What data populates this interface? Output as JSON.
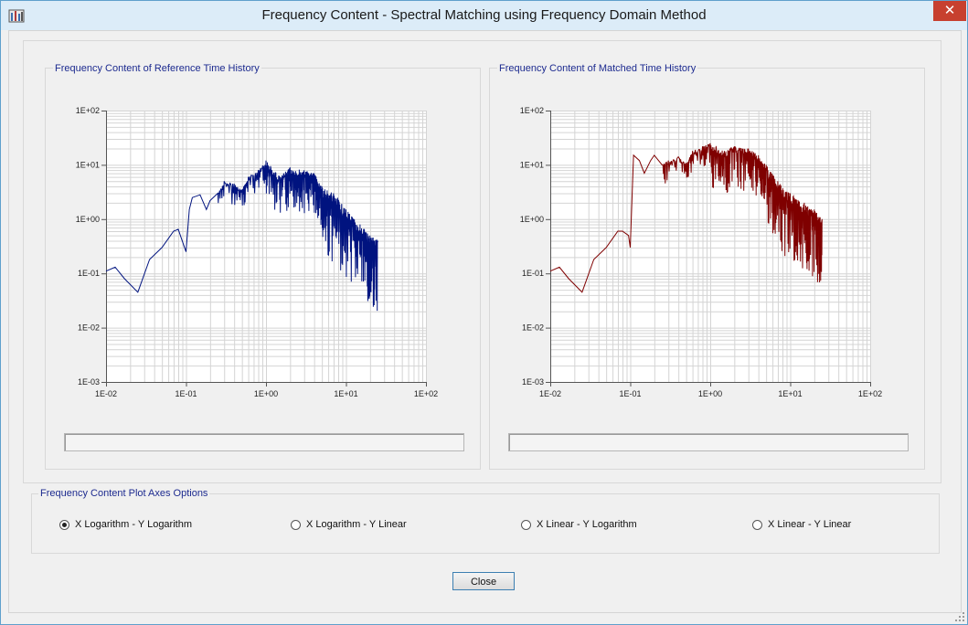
{
  "window": {
    "title": "Frequency Content - Spectral Matching using Frequency Domain Method",
    "close_glyph": "✕"
  },
  "colors": {
    "reference_series": "#00137f",
    "matched_series": "#7f0000",
    "title_text": "#1c2a8f"
  },
  "chart_data": [
    {
      "type": "line",
      "title": "Frequency Content of Reference Time History",
      "xscale": "log",
      "yscale": "log",
      "xlim": [
        0.01,
        100
      ],
      "ylim": [
        0.001,
        100
      ],
      "x_ticks": [
        "1E-02",
        "1E-01",
        "1E+00",
        "1E+01",
        "1E+02"
      ],
      "y_ticks": [
        "1E-03",
        "1E-02",
        "1E-01",
        "1E+00",
        "1E+01",
        "1E+02"
      ],
      "grid": true,
      "series": [
        {
          "color": "#00137f",
          "x": [
            0.01,
            0.013,
            0.017,
            0.025,
            0.035,
            0.05,
            0.07,
            0.08,
            0.1,
            0.11,
            0.12,
            0.15,
            0.18,
            0.2,
            0.25,
            0.3,
            0.4,
            0.5,
            0.6,
            0.8,
            1.0,
            1.5,
            2.0,
            3.0,
            4.0,
            5.0,
            7.0,
            10.0,
            15.0,
            20.0,
            25.0
          ],
          "y": [
            0.11,
            0.13,
            0.08,
            0.045,
            0.18,
            0.3,
            0.6,
            0.65,
            0.25,
            1.5,
            2.5,
            2.8,
            1.5,
            2.2,
            3.0,
            5.0,
            4.5,
            3.5,
            6.0,
            8.0,
            12.0,
            6.0,
            9.0,
            8.0,
            7.0,
            4.0,
            3.0,
            1.5,
            0.8,
            0.5,
            0.4
          ]
        }
      ]
    },
    {
      "type": "line",
      "title": "Frequency Content of Matched Time History",
      "xscale": "log",
      "yscale": "log",
      "xlim": [
        0.01,
        100
      ],
      "ylim": [
        0.001,
        100
      ],
      "x_ticks": [
        "1E-02",
        "1E-01",
        "1E+00",
        "1E+01",
        "1E+02"
      ],
      "y_ticks": [
        "1E-03",
        "1E-02",
        "1E-01",
        "1E+00",
        "1E+01",
        "1E+02"
      ],
      "grid": true,
      "series": [
        {
          "color": "#7f0000",
          "x": [
            0.01,
            0.013,
            0.017,
            0.025,
            0.035,
            0.05,
            0.07,
            0.08,
            0.095,
            0.1,
            0.11,
            0.13,
            0.15,
            0.18,
            0.2,
            0.25,
            0.3,
            0.4,
            0.5,
            0.6,
            0.8,
            1.0,
            1.5,
            2.0,
            3.0,
            4.0,
            5.0,
            7.0,
            10.0,
            15.0,
            20.0,
            25.0
          ],
          "y": [
            0.11,
            0.13,
            0.08,
            0.045,
            0.18,
            0.3,
            0.6,
            0.6,
            0.5,
            0.3,
            15.0,
            12.0,
            7.0,
            12.0,
            15.0,
            10.0,
            12.0,
            14.0,
            11.0,
            18.0,
            22.0,
            25.0,
            18.0,
            22.0,
            20.0,
            15.0,
            10.0,
            5.0,
            3.0,
            2.0,
            1.5,
            1.0
          ]
        }
      ]
    }
  ],
  "options": {
    "title": "Frequency Content Plot Axes Options",
    "radios": [
      {
        "label": "X Logarithm - Y Logarithm",
        "checked": true
      },
      {
        "label": "X Logarithm - Y Linear",
        "checked": false
      },
      {
        "label": "X Linear - Y Logarithm",
        "checked": false
      },
      {
        "label": "X Linear - Y Linear",
        "checked": false
      }
    ]
  },
  "buttons": {
    "close": "Close"
  }
}
